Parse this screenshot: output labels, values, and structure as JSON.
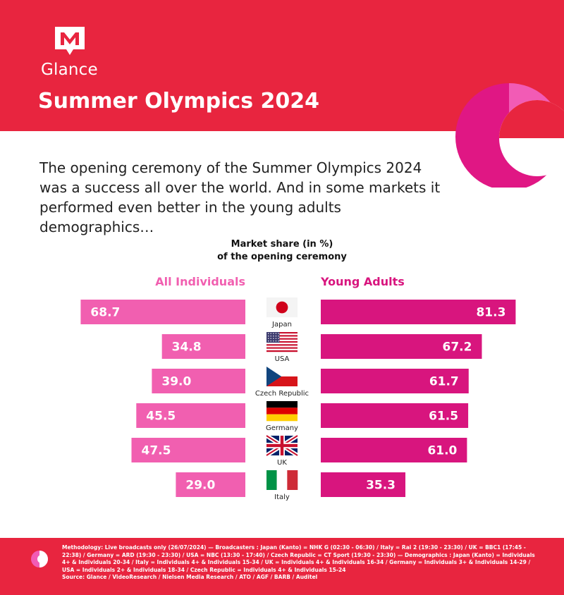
{
  "brand": {
    "name": "Glance"
  },
  "title": "Summer Olympics 2024",
  "intro": "The opening ceremony of the Summer Olympics 2024 was a success all over the world. And in some markets it performed even better in the young adults demographics…",
  "colors": {
    "header": "#e8253f",
    "all_individuals": "#f15fb0",
    "young_adults": "#d8157e"
  },
  "chart_data": {
    "type": "bar",
    "title": "Market share (in %) of the opening ceremony",
    "title_lines": [
      "Market share (in %)",
      "of the opening ceremony"
    ],
    "categories": [
      "Japan",
      "USA",
      "Czech Republic",
      "Germany",
      "UK",
      "Italy"
    ],
    "series": [
      {
        "name": "All Individuals",
        "values": [
          68.7,
          34.8,
          39.0,
          45.5,
          47.5,
          29.0
        ],
        "color": "#f15fb0"
      },
      {
        "name": "Young Adults",
        "values": [
          81.3,
          67.2,
          61.7,
          61.5,
          61.0,
          35.3
        ],
        "color": "#d8157e"
      }
    ],
    "flags": [
      "japan-flag",
      "usa-flag",
      "czech-flag",
      "germany-flag",
      "uk-flag",
      "italy-flag"
    ],
    "layout_style": "butterfly"
  },
  "footnote": [
    "Methodology: Live broadcasts only (26/07/2024) — Broadcasters : Japan (Kanto) = NHK G (02:30 - 06:30) / Italy = Rai 2 (19:30 - 23:30) / UK = BBC1 (17:45 - 22:38) / Germany = ARD (19:30 - 23:30) / USA = NBC (13:30 - 17:40) / Czech Republic = CT Sport (19:30 - 23:30) — Demographics : Japan (Kanto) = Individuals 4+ & Individuals 20-34 / Italy = Individuals 4+ & Individuals 15-34 / UK = Individuals 4+ & Individuals 16-34 / Germany = Individuals 3+ & Individuals 14-29 / USA = Individuals 2+ & Individuals 18-34 / Czech Republic = Individuals 4+ & Individuals 15-24",
    "Source: Glance / VideoResearch / Nielsen Media Research / ATO / AGF / BARB / Auditel"
  ]
}
